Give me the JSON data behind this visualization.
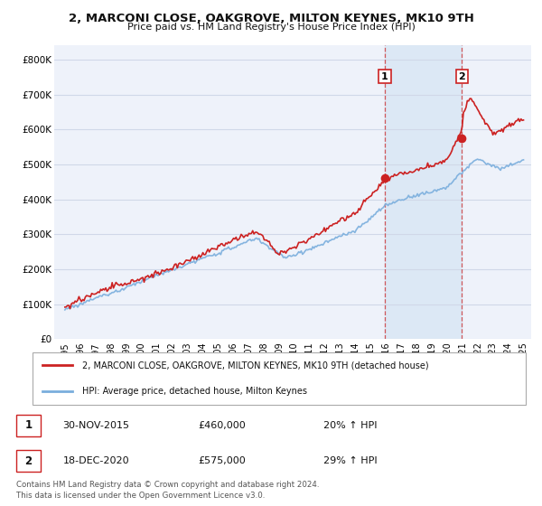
{
  "title": "2, MARCONI CLOSE, OAKGROVE, MILTON KEYNES, MK10 9TH",
  "subtitle": "Price paid vs. HM Land Registry's House Price Index (HPI)",
  "background_color": "#ffffff",
  "plot_bg_color": "#eef2fa",
  "grid_color": "#d0d8e8",
  "hpi_line_color": "#7aaedd",
  "price_line_color": "#cc2222",
  "highlight_bg": "#dce8f5",
  "sale1_date_num": 2015.92,
  "sale2_date_num": 2020.97,
  "sale1_price": 460000,
  "sale2_price": 575000,
  "sale1_label": "1",
  "sale2_label": "2",
  "sale1_date_str": "30-NOV-2015",
  "sale1_pct": "20%",
  "sale2_date_str": "18-DEC-2020",
  "sale2_pct": "29%",
  "legend_label1": "2, MARCONI CLOSE, OAKGROVE, MILTON KEYNES, MK10 9TH (detached house)",
  "legend_label2": "HPI: Average price, detached house, Milton Keynes",
  "footer": "Contains HM Land Registry data © Crown copyright and database right 2024.\nThis data is licensed under the Open Government Licence v3.0.",
  "ylim_max": 840000,
  "yticks": [
    0,
    100000,
    200000,
    300000,
    400000,
    500000,
    600000,
    700000,
    800000
  ],
  "ytick_labels": [
    "£0",
    "£100K",
    "£200K",
    "£300K",
    "£400K",
    "£500K",
    "£600K",
    "£700K",
    "£800K"
  ],
  "xmin": 1994.3,
  "xmax": 2025.5
}
